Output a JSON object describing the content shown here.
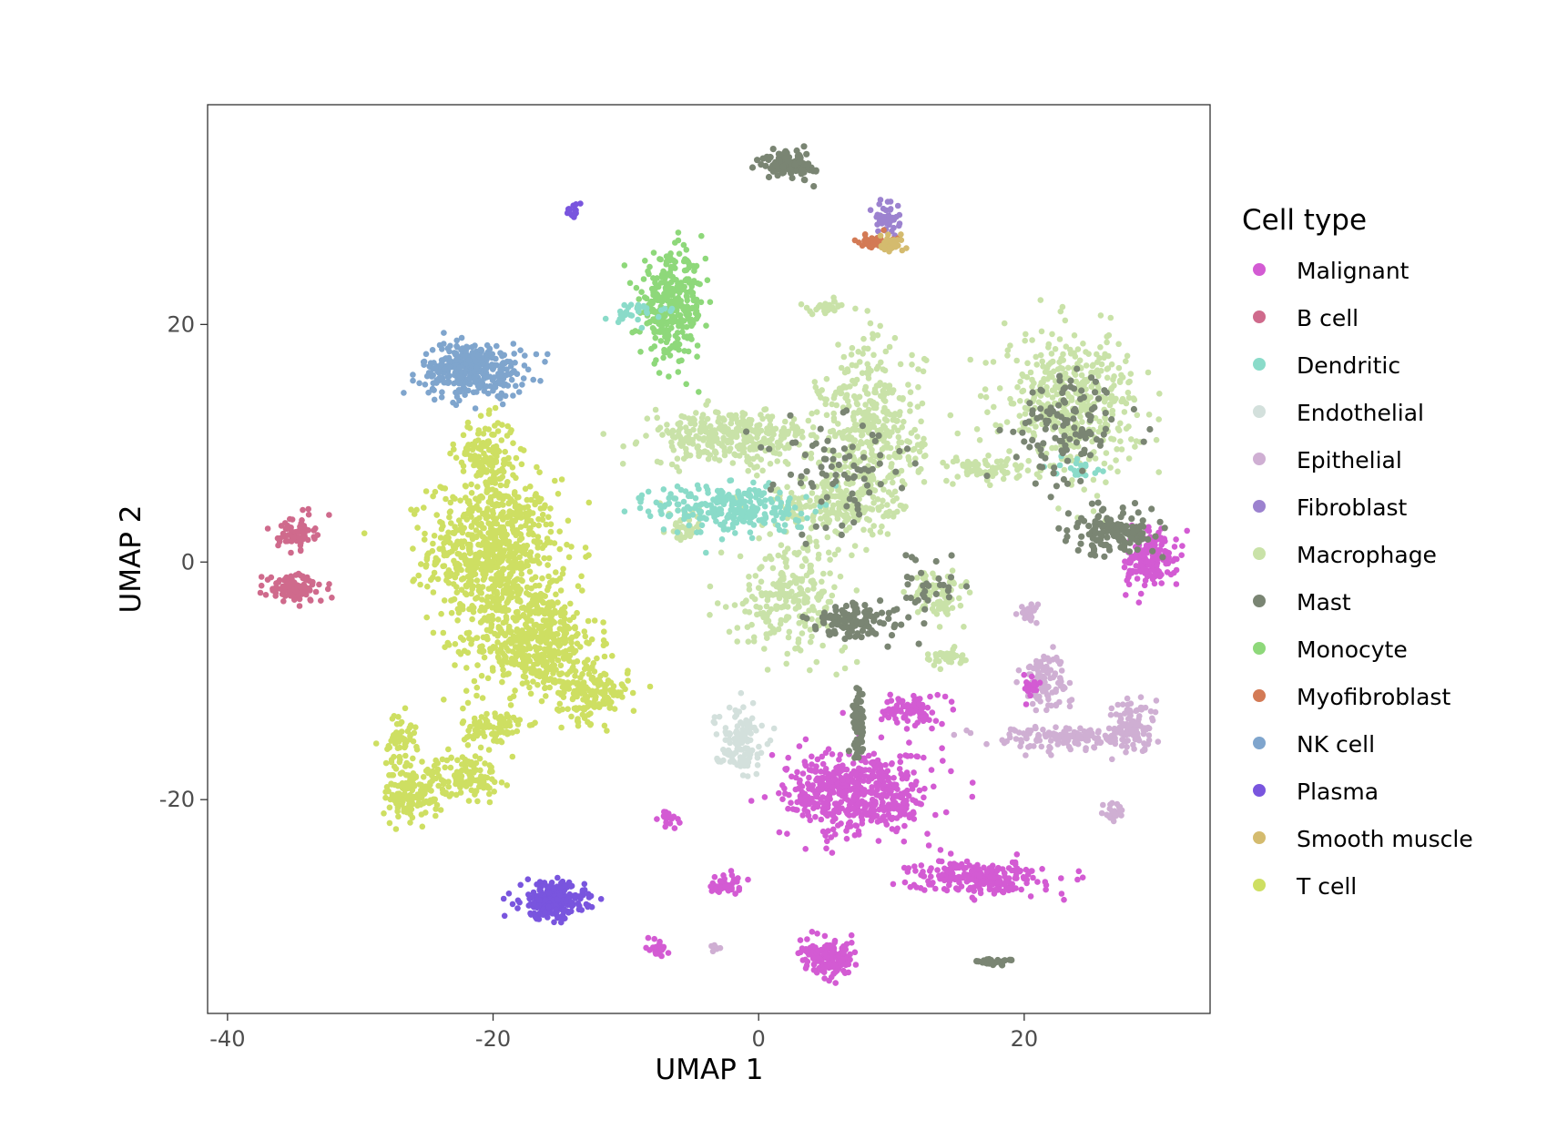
{
  "chart_data": {
    "type": "scatter",
    "title": "",
    "xlabel": "UMAP 1",
    "ylabel": "UMAP 2",
    "xlim": [
      -41.5,
      34
    ],
    "ylim": [
      -38,
      38.5
    ],
    "xticks": [
      -40,
      -20,
      0,
      20
    ],
    "yticks": [
      -20,
      0,
      20
    ],
    "xtick_labels": [
      "-40",
      "-20",
      "0",
      "20"
    ],
    "ytick_labels": [
      "-20",
      "0",
      "20"
    ],
    "grid": false,
    "legend": {
      "title": "Cell type",
      "placement": "right"
    },
    "series": [
      {
        "name": "Malignant",
        "color": "#D35BD3",
        "clusters": [
          {
            "cx": 7.5,
            "cy": -19.5,
            "sx": 3.6,
            "sy": 2.4,
            "n": 520
          },
          {
            "cx": 16.5,
            "cy": -26.5,
            "sx": 3.2,
            "sy": 0.9,
            "n": 240
          },
          {
            "cx": 5.3,
            "cy": -33.5,
            "sx": 1.4,
            "sy": 1.0,
            "n": 150
          },
          {
            "cx": 29.5,
            "cy": 0.3,
            "sx": 1.3,
            "sy": 1.6,
            "n": 170
          },
          {
            "cx": 11.5,
            "cy": -12.5,
            "sx": 1.3,
            "sy": 0.9,
            "n": 90
          },
          {
            "cx": -2.5,
            "cy": -27.0,
            "sx": 0.8,
            "sy": 0.6,
            "n": 40
          },
          {
            "cx": -7.5,
            "cy": -32.5,
            "sx": 0.4,
            "sy": 0.6,
            "n": 25
          },
          {
            "cx": -6.8,
            "cy": -21.5,
            "sx": 0.6,
            "sy": 0.6,
            "n": 20
          },
          {
            "cx": 20.5,
            "cy": -10.5,
            "sx": 0.5,
            "sy": 0.6,
            "n": 20
          }
        ]
      },
      {
        "name": "B cell",
        "color": "#CF6A8C",
        "clusters": [
          {
            "cx": -34.8,
            "cy": 2.5,
            "sx": 0.9,
            "sy": 0.9,
            "n": 70
          },
          {
            "cx": -35.0,
            "cy": -2.2,
            "sx": 1.5,
            "sy": 0.8,
            "n": 110
          }
        ]
      },
      {
        "name": "Dendritic",
        "color": "#8ADBC9",
        "clusters": [
          {
            "cx": -2.0,
            "cy": 4.5,
            "sx": 3.8,
            "sy": 1.4,
            "n": 260
          },
          {
            "cx": -9.5,
            "cy": 21.0,
            "sx": 1.4,
            "sy": 0.6,
            "n": 30
          },
          {
            "cx": 24.0,
            "cy": 8.0,
            "sx": 1.2,
            "sy": 0.5,
            "n": 20
          }
        ]
      },
      {
        "name": "Endothelial",
        "color": "#D3E0DC",
        "clusters": [
          {
            "cx": -1.5,
            "cy": -15.0,
            "sx": 1.2,
            "sy": 1.8,
            "n": 120
          }
        ]
      },
      {
        "name": "Epithelial",
        "color": "#CFAFD3",
        "clusters": [
          {
            "cx": 21.5,
            "cy": -10.0,
            "sx": 1.2,
            "sy": 1.7,
            "n": 100
          },
          {
            "cx": 23.5,
            "cy": -14.8,
            "sx": 4.2,
            "sy": 0.7,
            "n": 150
          },
          {
            "cx": 28.0,
            "cy": -13.5,
            "sx": 1.2,
            "sy": 1.4,
            "n": 80
          },
          {
            "cx": 20.5,
            "cy": -4.3,
            "sx": 0.5,
            "sy": 0.6,
            "n": 25
          },
          {
            "cx": 26.7,
            "cy": -21.2,
            "sx": 0.6,
            "sy": 0.6,
            "n": 25
          },
          {
            "cx": -3.3,
            "cy": -32.5,
            "sx": 0.3,
            "sy": 0.2,
            "n": 8
          }
        ]
      },
      {
        "name": "Fibroblast",
        "color": "#9C82CF",
        "clusters": [
          {
            "cx": 9.7,
            "cy": 29.0,
            "sx": 0.6,
            "sy": 0.9,
            "n": 40
          }
        ]
      },
      {
        "name": "Macrophage",
        "color": "#C9E2A8",
        "clusters": [
          {
            "cx": 23.5,
            "cy": 13.5,
            "sx": 3.4,
            "sy": 3.8,
            "n": 450
          },
          {
            "cx": 8.5,
            "cy": 11.0,
            "sx": 2.6,
            "sy": 5.0,
            "n": 380
          },
          {
            "cx": -2.0,
            "cy": 10.5,
            "sx": 4.2,
            "sy": 1.5,
            "n": 320
          },
          {
            "cx": 2.5,
            "cy": -2.8,
            "sx": 2.8,
            "sy": 3.0,
            "n": 240
          },
          {
            "cx": 13.5,
            "cy": -2.8,
            "sx": 1.3,
            "sy": 1.3,
            "n": 80
          },
          {
            "cx": 14.0,
            "cy": -8.0,
            "sx": 1.0,
            "sy": 0.5,
            "n": 40
          },
          {
            "cx": 5.0,
            "cy": 21.4,
            "sx": 1.2,
            "sy": 0.35,
            "n": 30
          },
          {
            "cx": 17.5,
            "cy": 7.8,
            "sx": 2.2,
            "sy": 0.7,
            "n": 70
          },
          {
            "cx": 5.5,
            "cy": 5.0,
            "sx": 3.0,
            "sy": 2.0,
            "n": 200
          },
          {
            "cx": -5.5,
            "cy": 3.0,
            "sx": 0.8,
            "sy": 1.2,
            "n": 40
          }
        ]
      },
      {
        "name": "Mast",
        "color": "#7A8573",
        "clusters": [
          {
            "cx": 2.3,
            "cy": 33.5,
            "sx": 1.3,
            "sy": 0.8,
            "n": 110
          },
          {
            "cx": 27.0,
            "cy": 2.5,
            "sx": 2.2,
            "sy": 1.2,
            "n": 140
          },
          {
            "cx": 7.5,
            "cy": -5.0,
            "sx": 2.5,
            "sy": 1.0,
            "n": 110
          },
          {
            "cx": 7.5,
            "cy": -13.5,
            "sx": 0.3,
            "sy": 2.0,
            "n": 70
          },
          {
            "cx": 23.5,
            "cy": 11.0,
            "sx": 2.6,
            "sy": 3.2,
            "n": 120
          },
          {
            "cx": 17.5,
            "cy": -33.7,
            "sx": 1.0,
            "sy": 0.2,
            "n": 25
          },
          {
            "cx": 13.0,
            "cy": -2.0,
            "sx": 2.0,
            "sy": 1.8,
            "n": 30
          },
          {
            "cx": 6.0,
            "cy": 8.0,
            "sx": 3.5,
            "sy": 3.5,
            "n": 80
          }
        ]
      },
      {
        "name": "Monocyte",
        "color": "#8ED87A",
        "clusters": [
          {
            "cx": -6.5,
            "cy": 21.5,
            "sx": 1.6,
            "sy": 2.8,
            "n": 330
          }
        ]
      },
      {
        "name": "Myofibroblast",
        "color": "#D37A55",
        "clusters": [
          {
            "cx": 8.8,
            "cy": 27.0,
            "sx": 0.9,
            "sy": 0.4,
            "n": 45
          }
        ]
      },
      {
        "name": "NK cell",
        "color": "#7FA5CD",
        "clusters": [
          {
            "cx": -21.5,
            "cy": 16.2,
            "sx": 2.6,
            "sy": 1.5,
            "n": 360
          }
        ]
      },
      {
        "name": "Plasma",
        "color": "#7955DE",
        "clusters": [
          {
            "cx": -15.5,
            "cy": -28.5,
            "sx": 1.6,
            "sy": 1.0,
            "n": 260
          },
          {
            "cx": -14.0,
            "cy": 29.5,
            "sx": 0.4,
            "sy": 0.4,
            "n": 20
          }
        ]
      },
      {
        "name": "Smooth muscle",
        "color": "#D4BB6E",
        "clusters": [
          {
            "cx": 10.0,
            "cy": 26.8,
            "sx": 0.7,
            "sy": 0.4,
            "n": 40
          }
        ]
      },
      {
        "name": "T cell",
        "color": "#CEDF62",
        "clusters": [
          {
            "cx": -20.0,
            "cy": 1.0,
            "sx": 3.2,
            "sy": 4.0,
            "n": 700
          },
          {
            "cx": -17.0,
            "cy": -6.5,
            "sx": 3.2,
            "sy": 3.0,
            "n": 500
          },
          {
            "cx": -12.5,
            "cy": -11.0,
            "sx": 1.8,
            "sy": 1.6,
            "n": 160
          },
          {
            "cx": -20.5,
            "cy": 9.0,
            "sx": 1.5,
            "sy": 2.0,
            "n": 150
          },
          {
            "cx": -26.0,
            "cy": -19.5,
            "sx": 1.5,
            "sy": 1.5,
            "n": 150
          },
          {
            "cx": -27.0,
            "cy": -15.0,
            "sx": 0.8,
            "sy": 1.5,
            "n": 60
          },
          {
            "cx": -22.0,
            "cy": -18.0,
            "sx": 1.6,
            "sy": 1.2,
            "n": 110
          },
          {
            "cx": -20.0,
            "cy": -14.0,
            "sx": 1.5,
            "sy": 1.2,
            "n": 90
          }
        ]
      }
    ]
  }
}
